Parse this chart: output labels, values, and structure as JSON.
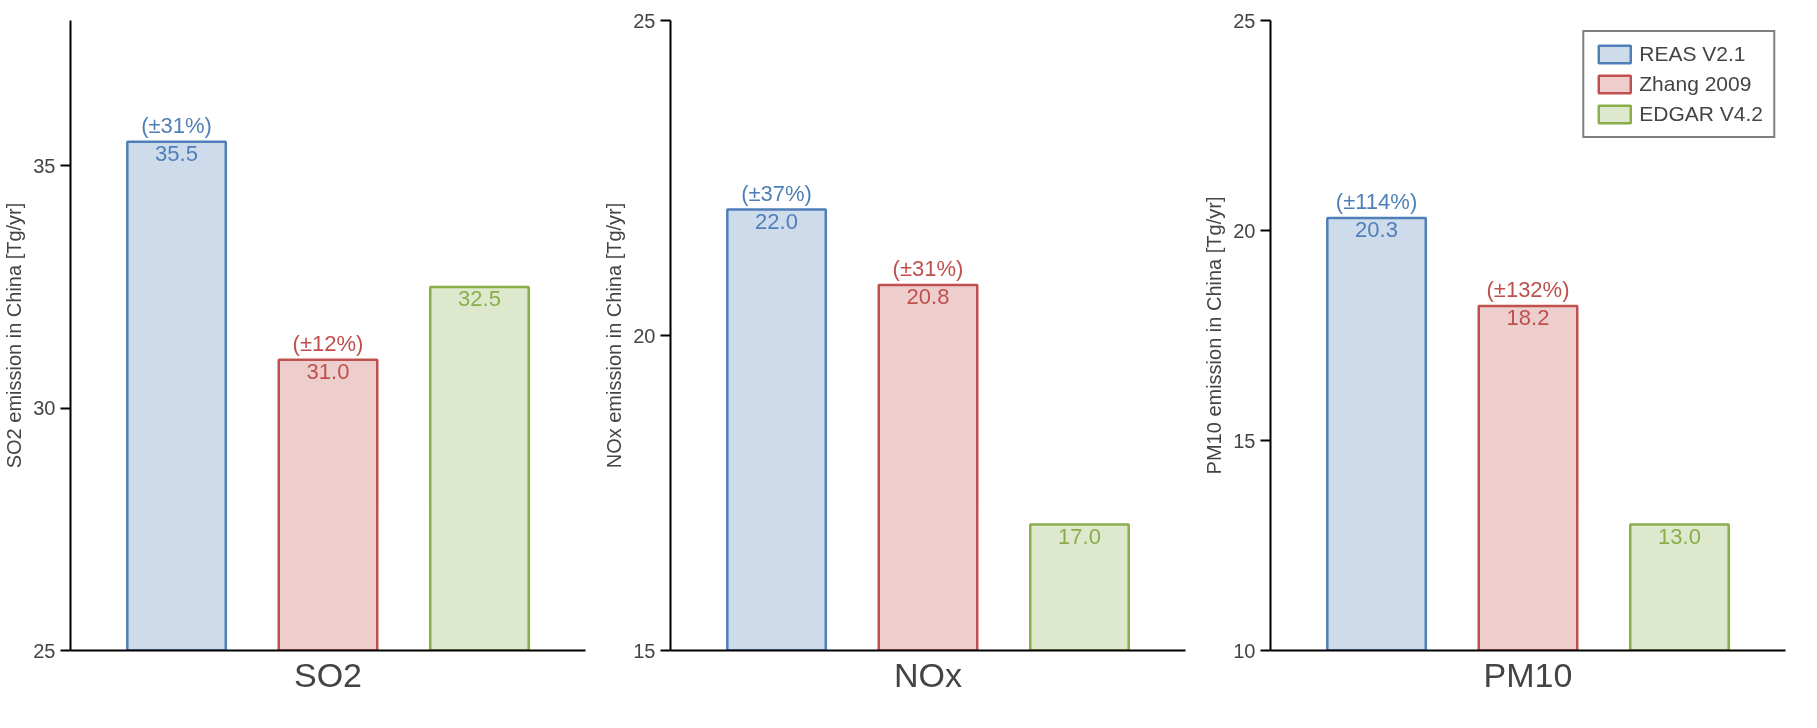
{
  "chart_data": [
    {
      "type": "bar",
      "xlabel": "SO2",
      "ylabel": "SO2 emission in China [Tg/yr]",
      "categories": [
        null
      ],
      "ylim": [
        25,
        38
      ],
      "yticks": [
        25,
        30,
        35
      ],
      "grid": false,
      "legend": false,
      "series": [
        {
          "color": "#4f7fb8",
          "values": [
            35.5
          ],
          "value_labels": [
            "35.5"
          ]
        },
        {
          "color": "#c0504d",
          "values": [
            31.0
          ],
          "value_labels": [
            "31.0"
          ]
        },
        {
          "color": "#8aae4a",
          "values": [
            32.5
          ],
          "value_labels": [
            "32.5"
          ]
        }
      ],
      "annotations": [
        {
          "text": "(±31%)",
          "y": 35.5
        },
        {
          "text": "(±12%)",
          "y": 31.0
        }
      ]
    },
    {
      "type": "bar",
      "xlabel": "NOx",
      "ylabel": "NOx emission in China [Tg/yr]",
      "categories": [
        null
      ],
      "ylim": [
        15,
        25
      ],
      "yticks": [
        15,
        20,
        25
      ],
      "grid": false,
      "legend": false,
      "series": [
        {
          "color": "#4f7fb8",
          "values": [
            22.0
          ],
          "value_labels": [
            "22.0"
          ]
        },
        {
          "color": "#c0504d",
          "values": [
            20.8
          ],
          "value_labels": [
            "20.8"
          ]
        },
        {
          "color": "#8aae4a",
          "values": [
            17.0
          ],
          "value_labels": [
            "17.0"
          ]
        }
      ],
      "annotations": [
        {
          "text": "(±37%)",
          "y": 22.0
        },
        {
          "text": "(±31%)",
          "y": 20.8
        }
      ]
    },
    {
      "type": "bar",
      "xlabel": "PM10",
      "ylabel": "PM10 emission in China [Tg/yr]",
      "categories": [
        null
      ],
      "ylim": [
        10,
        25
      ],
      "yticks": [
        10,
        15,
        20,
        25
      ],
      "grid": false,
      "legend": "top right",
      "series": [
        {
          "name": "REAS V2.1",
          "color": "#4f7fb8",
          "values": [
            20.3
          ],
          "value_labels": [
            "20.3"
          ]
        },
        {
          "name": "Zhang 2009",
          "color": "#c0504d",
          "values": [
            18.2
          ],
          "value_labels": [
            "18.2"
          ]
        },
        {
          "name": "EDGAR V4.2",
          "color": "#8aae4a",
          "values": [
            13.0
          ],
          "value_labels": [
            "13.0"
          ]
        }
      ],
      "annotations": [
        {
          "text": "(±114%)",
          "y": 20.3
        },
        {
          "text": "(±132%)",
          "y": 18.2
        }
      ]
    }
  ]
}
